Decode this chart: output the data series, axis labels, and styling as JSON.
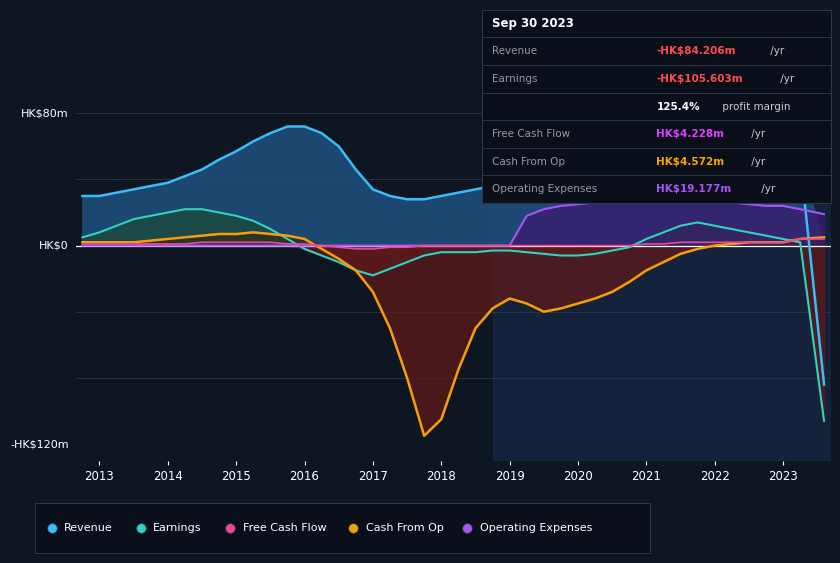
{
  "bg_color": "#0e1621",
  "chart_bg": "#0e1621",
  "title_box": {
    "date": "Sep 30 2023",
    "rows": [
      {
        "label": "Revenue",
        "value": "-HK$84.206m",
        "value_color": "#ff4d4d",
        "suffix": " /yr"
      },
      {
        "label": "Earnings",
        "value": "-HK$105.603m",
        "value_color": "#ff4d4d",
        "suffix": " /yr"
      },
      {
        "label": "",
        "value": "125.4%",
        "value_color": "#ffffff",
        "suffix": " profit margin",
        "bold_value": true
      },
      {
        "label": "Free Cash Flow",
        "value": "HK$4.228m",
        "value_color": "#e040fb",
        "suffix": " /yr"
      },
      {
        "label": "Cash From Op",
        "value": "HK$4.572m",
        "value_color": "#ffa500",
        "suffix": " /yr"
      },
      {
        "label": "Operating Expenses",
        "value": "HK$19.177m",
        "value_color": "#a855f7",
        "suffix": " /yr"
      }
    ]
  },
  "y_label_top": "HK$80m",
  "y_label_zero": "HK$0",
  "y_label_bottom": "-HK$120m",
  "x_ticks": [
    2013,
    2014,
    2015,
    2016,
    2017,
    2018,
    2019,
    2020,
    2021,
    2022,
    2023
  ],
  "x_labels": [
    "2013",
    "2014",
    "2015",
    "2016",
    "2017",
    "2018",
    "2019",
    "2020",
    "2021",
    "2022",
    "2023"
  ],
  "ylim": [
    -130,
    85
  ],
  "legend": [
    {
      "label": "Revenue",
      "color": "#38bdf8"
    },
    {
      "label": "Earnings",
      "color": "#2dd4bf"
    },
    {
      "label": "Free Cash Flow",
      "color": "#ec4899"
    },
    {
      "label": "Cash From Op",
      "color": "#f59e0b"
    },
    {
      "label": "Operating Expenses",
      "color": "#a855f7"
    }
  ],
  "series": {
    "x": [
      2012.75,
      2013.0,
      2013.25,
      2013.5,
      2013.75,
      2014.0,
      2014.25,
      2014.5,
      2014.75,
      2015.0,
      2015.25,
      2015.5,
      2015.75,
      2016.0,
      2016.25,
      2016.5,
      2016.75,
      2017.0,
      2017.25,
      2017.5,
      2017.75,
      2018.0,
      2018.25,
      2018.5,
      2018.75,
      2019.0,
      2019.25,
      2019.5,
      2019.75,
      2020.0,
      2020.25,
      2020.5,
      2020.75,
      2021.0,
      2021.25,
      2021.5,
      2021.75,
      2022.0,
      2022.25,
      2022.5,
      2022.75,
      2023.0,
      2023.25,
      2023.6
    ],
    "revenue": [
      30,
      30,
      32,
      34,
      36,
      38,
      42,
      46,
      52,
      57,
      63,
      68,
      72,
      72,
      68,
      60,
      46,
      34,
      30,
      28,
      28,
      30,
      32,
      34,
      36,
      36,
      38,
      40,
      42,
      44,
      50,
      58,
      65,
      72,
      74,
      72,
      68,
      64,
      62,
      60,
      56,
      54,
      52,
      -84
    ],
    "earnings": [
      5,
      8,
      12,
      16,
      18,
      20,
      22,
      22,
      20,
      18,
      15,
      10,
      4,
      -2,
      -6,
      -10,
      -15,
      -18,
      -14,
      -10,
      -6,
      -4,
      -4,
      -4,
      -3,
      -3,
      -4,
      -5,
      -6,
      -6,
      -5,
      -3,
      -1,
      4,
      8,
      12,
      14,
      12,
      10,
      8,
      6,
      4,
      2,
      -106
    ],
    "free_cash_flow": [
      1,
      1,
      1,
      1,
      1,
      1,
      1,
      2,
      2,
      2,
      2,
      2,
      1,
      1,
      0,
      -1,
      -2,
      -2,
      -1,
      -1,
      0,
      0,
      0,
      0,
      0,
      0,
      0,
      0,
      0,
      0,
      0,
      0,
      0,
      1,
      1,
      2,
      2,
      2,
      2,
      2,
      2,
      2,
      4,
      4
    ],
    "cash_from_op": [
      2,
      2,
      2,
      2,
      3,
      4,
      5,
      6,
      7,
      7,
      8,
      7,
      6,
      4,
      -2,
      -8,
      -15,
      -28,
      -50,
      -80,
      -115,
      -105,
      -75,
      -50,
      -38,
      -32,
      -35,
      -40,
      -38,
      -35,
      -32,
      -28,
      -22,
      -15,
      -10,
      -5,
      -2,
      0,
      1,
      2,
      2,
      2,
      4,
      5
    ],
    "operating_expenses": [
      0,
      0,
      0,
      0,
      0,
      0,
      0,
      0,
      0,
      0,
      0,
      0,
      0,
      0,
      0,
      0,
      0,
      0,
      0,
      0,
      0,
      0,
      0,
      0,
      0,
      0,
      18,
      22,
      24,
      25,
      26,
      27,
      28,
      28,
      28,
      27,
      26,
      26,
      26,
      25,
      24,
      24,
      22,
      19
    ]
  },
  "shade_start_x": 2018.75,
  "revenue_color": "#38bdf8",
  "revenue_fill": "#1e4d7a",
  "earnings_color": "#2dd4bf",
  "earnings_fill_pos": "#1a4a40",
  "earnings_fill_neg": "#5c1a1a",
  "fcf_color": "#ec4899",
  "cfo_color": "#f59e0b",
  "cfo_fill_neg": "#5c1a1a",
  "cfo_fill_pos": "#3a2000",
  "opex_color": "#a855f7",
  "opex_fill": "#3b1a6e"
}
